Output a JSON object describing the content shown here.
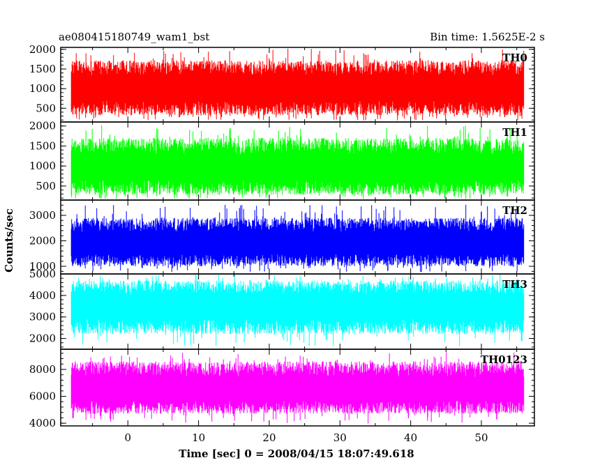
{
  "chart_data": {
    "type": "line",
    "title_left": "ae080415180749_wam1_bst",
    "title_right": "Bin time: 1.5625E-2 s",
    "xlabel": "Time [sec] 0 = 2008/04/15 18:07:49.618",
    "ylabel": "Counts/sec",
    "xlim": [
      -9.5,
      57.5
    ],
    "x_data_range": [
      -8,
      56
    ],
    "xticks": [
      0,
      10,
      20,
      30,
      40,
      50
    ],
    "xtick_labels": [
      "0",
      "10",
      "20",
      "30",
      "40",
      "50"
    ],
    "panels": [
      {
        "name": "TH0",
        "color": "#ff0000",
        "ylim": [
          150,
          2050
        ],
        "yticks": [
          500,
          1000,
          1500,
          2000
        ],
        "ytick_labels": [
          "500",
          "1000",
          "1500",
          "2000"
        ],
        "mean": 1000,
        "low": 320,
        "high": 1720,
        "spike_high": 2020
      },
      {
        "name": "TH1",
        "color": "#00ff00",
        "ylim": [
          150,
          2100
        ],
        "yticks": [
          500,
          1000,
          1500,
          2000
        ],
        "ytick_labels": [
          "500",
          "1000",
          "1500",
          "2000"
        ],
        "mean": 950,
        "low": 280,
        "high": 1700,
        "spike_high": 2020
      },
      {
        "name": "TH2",
        "color": "#0000ff",
        "ylim": [
          700,
          3600
        ],
        "yticks": [
          1000,
          2000,
          3000
        ],
        "ytick_labels": [
          "1000",
          "2000",
          "3000"
        ],
        "mean": 1900,
        "low": 1000,
        "high": 2900,
        "spike_high": 3450
      },
      {
        "name": "TH3",
        "color": "#00ffff",
        "ylim": [
          1500,
          5000
        ],
        "yticks": [
          2000,
          3000,
          4000,
          5000
        ],
        "ytick_labels": [
          "2000",
          "3000",
          "4000",
          "5000"
        ],
        "mean": 3500,
        "low": 2200,
        "high": 4700,
        "spike_high": 5000
      },
      {
        "name": "TH0123",
        "color": "#ff00ff",
        "ylim": [
          3800,
          9500
        ],
        "yticks": [
          4000,
          6000,
          8000
        ],
        "ytick_labels": [
          "4000",
          "6000",
          "8000"
        ],
        "mean": 6500,
        "low": 4700,
        "high": 8600,
        "spike_high": 9300
      }
    ]
  }
}
